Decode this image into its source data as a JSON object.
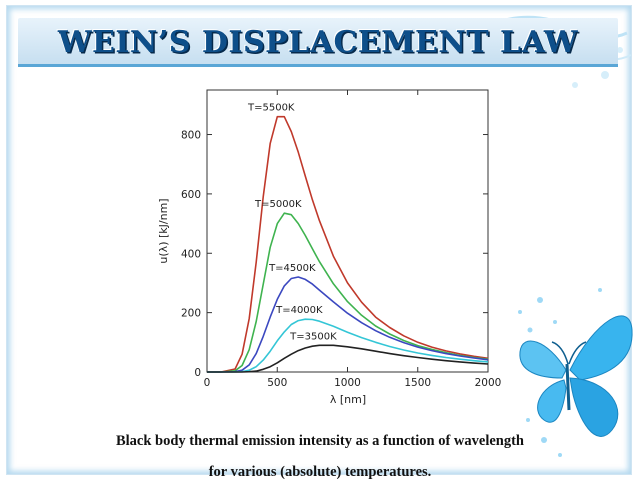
{
  "slide": {
    "title": "WEIN’S DISPLACEMENT LAW",
    "caption_line1": "Black body thermal emission intensity as a function of wavelength",
    "caption_line2": "for various (absolute) temperatures."
  },
  "decor": {
    "butterfly_icon": "butterfly-icon",
    "butterfly_color": "#29a9e8",
    "frame_glow": "#7ab9e1"
  },
  "chart_data": {
    "type": "line",
    "title": "",
    "xlabel": "λ [nm]",
    "ylabel": "u(λ) [kJ/nm]",
    "xlim": [
      0,
      2000
    ],
    "ylim": [
      0,
      950
    ],
    "xticks": [
      0,
      500,
      1000,
      1500,
      2000
    ],
    "yticks": [
      0,
      200,
      400,
      600,
      800
    ],
    "grid": false,
    "x": [
      0,
      100,
      200,
      250,
      300,
      350,
      400,
      450,
      500,
      550,
      600,
      650,
      700,
      750,
      800,
      900,
      1000,
      1100,
      1200,
      1300,
      1400,
      1500,
      1600,
      1700,
      1800,
      1900,
      2000
    ],
    "series": [
      {
        "name": "T=5500K",
        "color": "#c0392b",
        "values": [
          0,
          0,
          10,
          60,
          180,
          370,
          590,
          770,
          860,
          860,
          810,
          740,
          660,
          580,
          510,
          390,
          300,
          235,
          185,
          150,
          122,
          100,
          84,
          71,
          61,
          53,
          46
        ]
      },
      {
        "name": "T=5000K",
        "color": "#3fb34f",
        "values": [
          0,
          0,
          4,
          22,
          75,
          170,
          295,
          420,
          500,
          535,
          530,
          500,
          460,
          415,
          372,
          297,
          237,
          191,
          155,
          128,
          106,
          89,
          76,
          65,
          56,
          49,
          43
        ]
      },
      {
        "name": "T=4500K",
        "color": "#3b48c0",
        "values": [
          0,
          0,
          1,
          6,
          24,
          62,
          120,
          185,
          245,
          290,
          315,
          320,
          312,
          296,
          276,
          236,
          198,
          166,
          139,
          117,
          99,
          84,
          72,
          62,
          54,
          47,
          41
        ]
      },
      {
        "name": "T=4000K",
        "color": "#34c6d6",
        "values": [
          0,
          0,
          0,
          1,
          6,
          18,
          40,
          70,
          105,
          135,
          160,
          173,
          178,
          177,
          171,
          154,
          134,
          116,
          100,
          86,
          74,
          64,
          56,
          49,
          43,
          38,
          34
        ]
      },
      {
        "name": "T=3500K",
        "color": "#222222",
        "values": [
          0,
          0,
          0,
          0,
          1,
          3,
          9,
          18,
          31,
          46,
          60,
          72,
          81,
          87,
          90,
          90,
          85,
          78,
          70,
          62,
          55,
          49,
          43,
          38,
          34,
          30,
          27
        ]
      }
    ]
  }
}
